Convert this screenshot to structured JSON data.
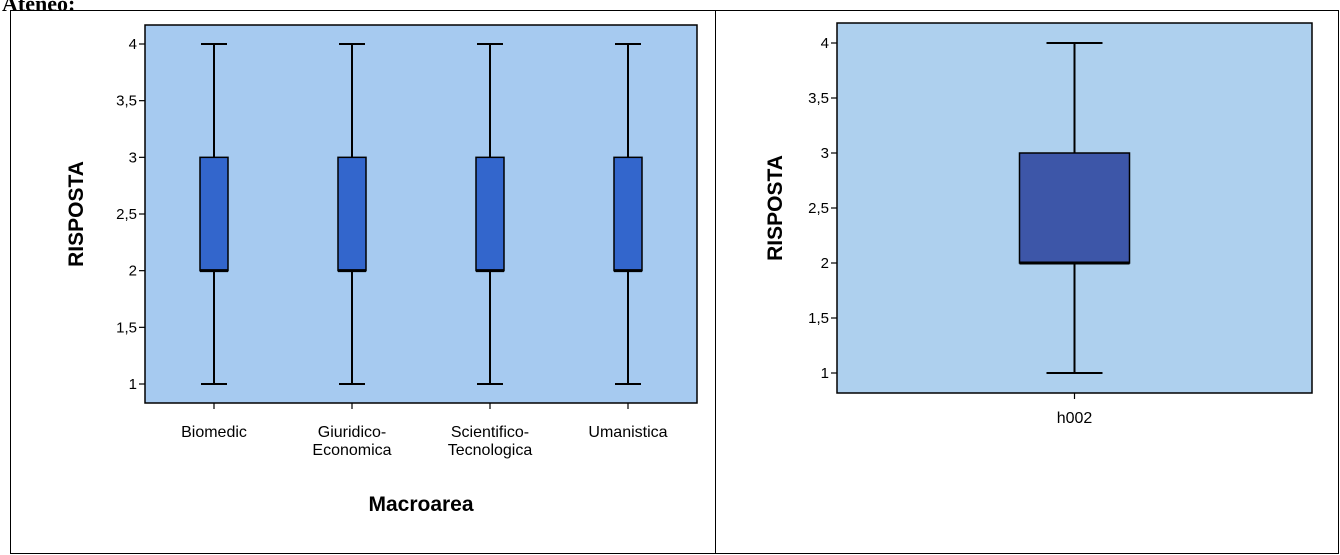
{
  "page": {
    "heading": "Ateneo:",
    "background_color": "#ffffff",
    "plot_background_color": "#a6caf0",
    "plot_background_color_right": "#aed0ee"
  },
  "chart_data": [
    {
      "type": "boxplot",
      "xlabel": "Macroarea",
      "ylabel": "RISPOSTA",
      "ylim": [
        1,
        4
      ],
      "yticks": [
        1,
        1.5,
        2,
        2.5,
        3,
        3.5,
        4
      ],
      "ytick_labels": [
        "1",
        "1,5",
        "2",
        "2,5",
        "3",
        "3,5",
        "4"
      ],
      "grid": false,
      "box_color": "#3366cc",
      "categories": [
        {
          "label_lines": [
            "Biomedic"
          ],
          "min": 1,
          "q1": 2,
          "median": 2,
          "q3": 3,
          "max": 4
        },
        {
          "label_lines": [
            "Giuridico-",
            "Economica"
          ],
          "min": 1,
          "q1": 2,
          "median": 2,
          "q3": 3,
          "max": 4
        },
        {
          "label_lines": [
            "Scientifico-",
            "Tecnologica"
          ],
          "min": 1,
          "q1": 2,
          "median": 2,
          "q3": 3,
          "max": 4
        },
        {
          "label_lines": [
            "Umanistica"
          ],
          "min": 1,
          "q1": 2,
          "median": 2,
          "q3": 3,
          "max": 4
        }
      ]
    },
    {
      "type": "boxplot",
      "xlabel": "",
      "ylabel": "RISPOSTA",
      "ylim": [
        1,
        4
      ],
      "yticks": [
        1,
        1.5,
        2,
        2.5,
        3,
        3.5,
        4
      ],
      "ytick_labels": [
        "1",
        "1,5",
        "2",
        "2,5",
        "3",
        "3,5",
        "4"
      ],
      "grid": false,
      "box_color": "#3d56a8",
      "categories": [
        {
          "label_lines": [
            "h002"
          ],
          "min": 1,
          "q1": 2,
          "median": 2,
          "q3": 3,
          "max": 4
        }
      ]
    }
  ]
}
